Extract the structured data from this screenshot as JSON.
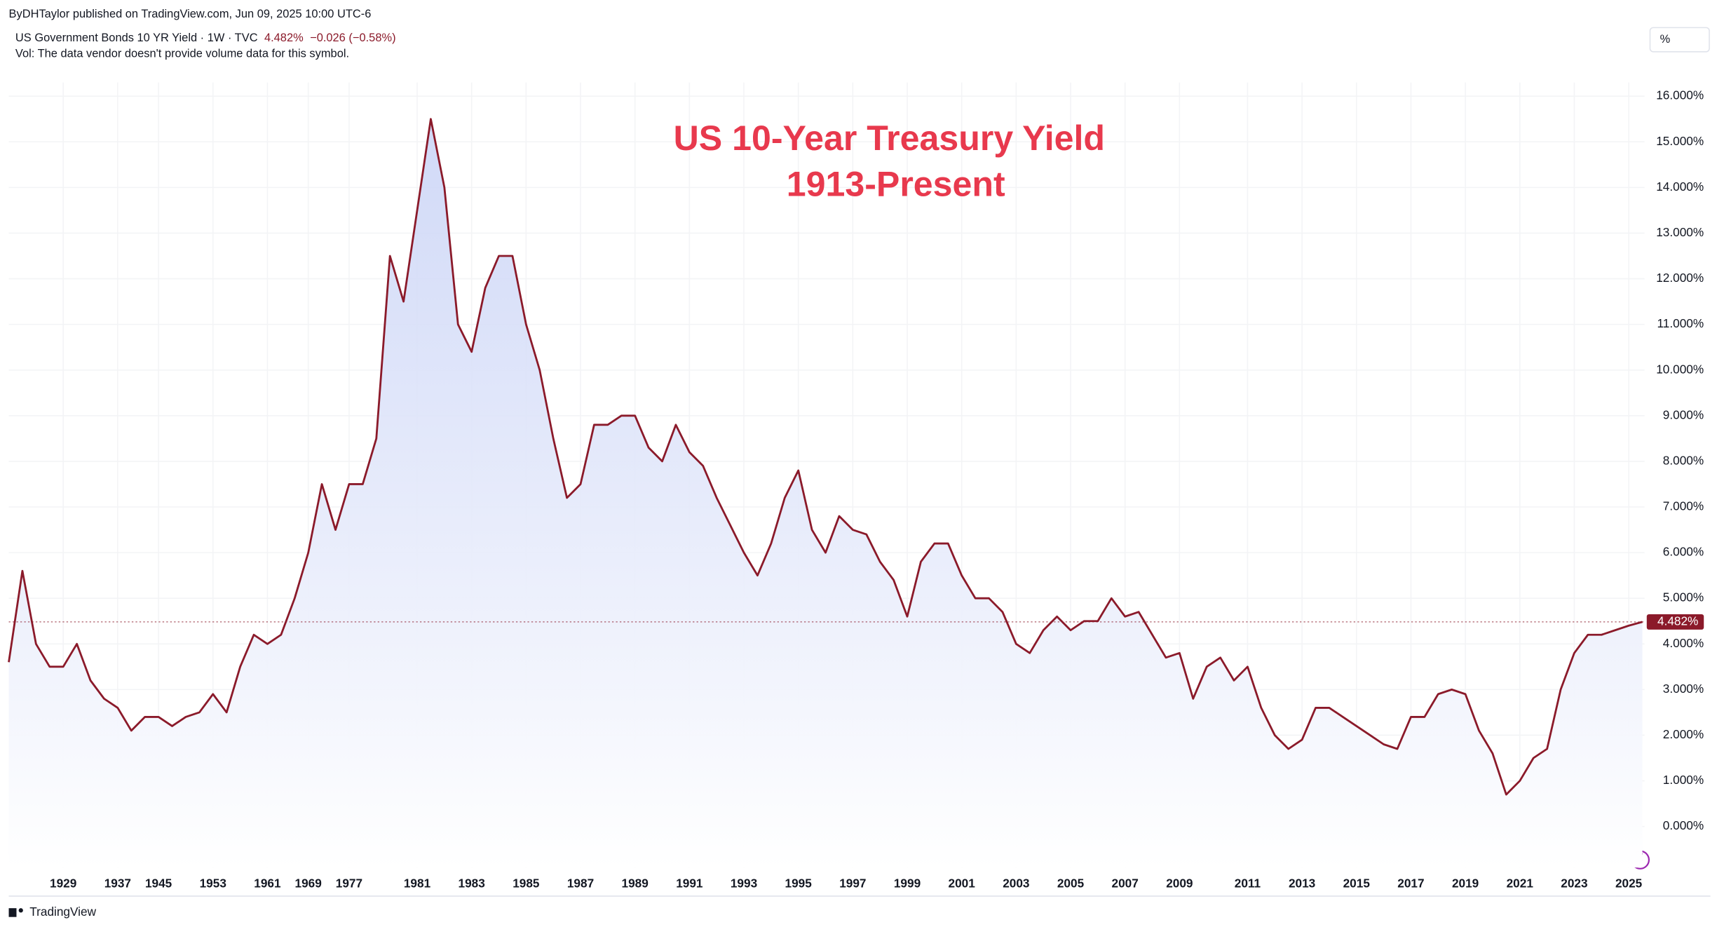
{
  "header": {
    "published": "ByDHTaylor published on TradingView.com, Jun 09, 2025 10:00 UTC-6",
    "symbol": "US Government Bonds 10 YR Yield · 1W · TVC",
    "change": "−0.026 (−0.58%)",
    "volume_note": "Vol: The data vendor doesn't provide volume data for this symbol.",
    "unit_button": "%"
  },
  "footer": {
    "brand": "TradingView"
  },
  "chart_data": {
    "type": "area",
    "title": "US 10-Year Treasury Yield",
    "subtitle": "1913-Present",
    "color": "#8b1a2a",
    "fill": "#c9d3f6",
    "last_label": "4.482%",
    "categories": [
      null,
      null,
      null,
      null,
      "1929",
      null,
      null,
      null,
      "1937",
      null,
      null,
      "1945",
      null,
      null,
      null,
      "1953",
      null,
      null,
      null,
      "1961",
      null,
      null,
      "1969",
      null,
      null,
      "1977",
      null,
      null,
      null,
      null,
      "1981",
      null,
      null,
      null,
      "1983",
      null,
      null,
      null,
      "1985",
      null,
      null,
      null,
      "1987",
      null,
      null,
      null,
      "1989",
      null,
      null,
      null,
      "1991",
      null,
      null,
      null,
      "1993",
      null,
      null,
      null,
      "1995",
      null,
      null,
      null,
      "1997",
      null,
      null,
      null,
      "1999",
      null,
      null,
      null,
      "2001",
      null,
      null,
      null,
      "2003",
      null,
      null,
      null,
      "2005",
      null,
      null,
      null,
      "2007",
      null,
      null,
      null,
      "2009",
      null,
      null,
      null,
      null,
      "2011",
      null,
      null,
      null,
      "2013",
      null,
      null,
      null,
      "2015",
      null,
      null,
      null,
      "2017",
      null,
      null,
      null,
      "2019",
      null,
      null,
      null,
      "2021",
      null,
      null,
      null,
      "2023",
      null,
      null,
      null,
      "2025",
      null
    ],
    "values": [
      3.6,
      5.6,
      4.0,
      3.5,
      3.5,
      4.0,
      3.2,
      2.8,
      2.6,
      2.1,
      2.4,
      2.4,
      2.2,
      2.4,
      2.5,
      2.9,
      2.5,
      3.5,
      4.2,
      4.0,
      4.2,
      5.0,
      6.0,
      7.5,
      6.5,
      7.5,
      7.5,
      8.5,
      12.5,
      11.5,
      13.5,
      15.5,
      14.0,
      11.0,
      10.4,
      11.8,
      12.5,
      12.5,
      11.0,
      10.0,
      8.5,
      7.2,
      7.5,
      8.8,
      8.8,
      9.0,
      9.0,
      8.3,
      8.0,
      8.8,
      8.2,
      7.9,
      7.2,
      6.6,
      6.0,
      5.5,
      6.2,
      7.2,
      7.8,
      6.5,
      6.0,
      6.8,
      6.5,
      6.4,
      5.8,
      5.4,
      4.6,
      5.8,
      6.2,
      6.2,
      5.5,
      5.0,
      5.0,
      4.7,
      4.0,
      3.8,
      4.3,
      4.6,
      4.3,
      4.5,
      4.5,
      5.0,
      4.6,
      4.7,
      4.2,
      3.7,
      3.8,
      2.8,
      3.5,
      3.7,
      3.2,
      3.5,
      2.6,
      2.0,
      1.7,
      1.9,
      2.6,
      2.6,
      2.4,
      2.2,
      2.0,
      1.8,
      1.7,
      2.4,
      2.4,
      2.9,
      3.0,
      2.9,
      2.1,
      1.6,
      0.7,
      1.0,
      1.5,
      1.7,
      3.0,
      3.8,
      4.2,
      4.2,
      4.3,
      4.4,
      4.482
    ],
    "ylim": [
      -0.9,
      16.3
    ],
    "yticks": [
      {
        "value": 0,
        "label": "0.000%"
      },
      {
        "value": 1,
        "label": "1.000%"
      },
      {
        "value": 2,
        "label": "2.000%"
      },
      {
        "value": 3,
        "label": "3.000%"
      },
      {
        "value": 4,
        "label": "4.000%"
      },
      {
        "value": 5,
        "label": "5.000%"
      },
      {
        "value": 6,
        "label": "6.000%"
      },
      {
        "value": 7,
        "label": "7.000%"
      },
      {
        "value": 8,
        "label": "8.000%"
      },
      {
        "value": 9,
        "label": "9.000%"
      },
      {
        "value": 10,
        "label": "10.000%"
      },
      {
        "value": 11,
        "label": "11.000%"
      },
      {
        "value": 12,
        "label": "12.000%"
      },
      {
        "value": 13,
        "label": "13.000%"
      },
      {
        "value": 14,
        "label": "14.000%"
      },
      {
        "value": 15,
        "label": "15.000%"
      },
      {
        "value": 16,
        "label": "16.000%"
      }
    ],
    "grid": true
  }
}
